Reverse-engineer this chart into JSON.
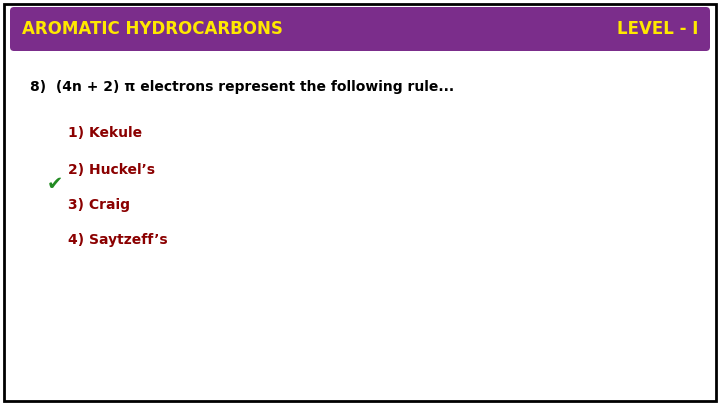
{
  "title_left": "AROMATIC HYDROCARBONS",
  "title_right": "LEVEL - I",
  "title_bg_color": "#7B2D8B",
  "title_text_color": "#FFE800",
  "question": "8)  (4n + 2) π electrons represent the following rule...",
  "question_color": "#000000",
  "options": [
    {
      "label": "1) Kekule",
      "color": "#8B0000"
    },
    {
      "label": "2) Huckel’s",
      "color": "#8B0000"
    },
    {
      "label": "3) Craig",
      "color": "#8B0000"
    },
    {
      "label": "4) Saytzeff’s",
      "color": "#8B0000"
    }
  ],
  "correct_option_index": 1,
  "checkmark": "✔",
  "checkmark_color": "#228B22",
  "bg_color": "#FFFFFF",
  "border_color": "#000000",
  "figsize": [
    7.2,
    4.05
  ],
  "dpi": 100
}
